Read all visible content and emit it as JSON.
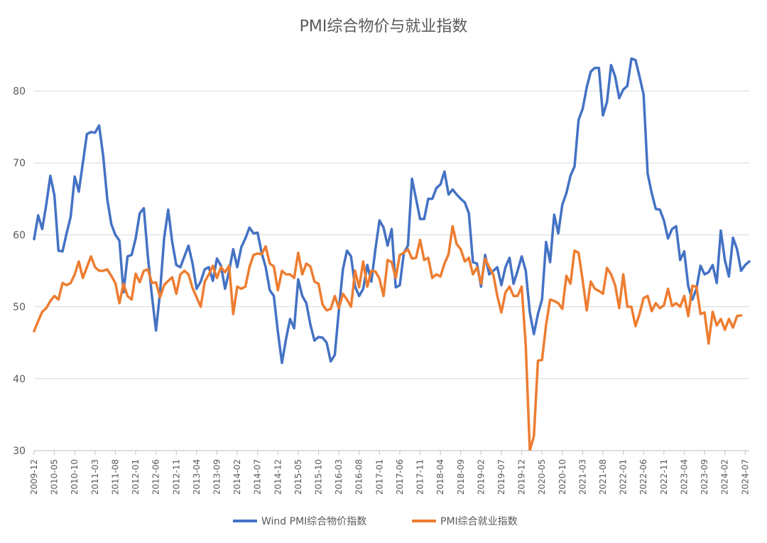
{
  "chart_data": {
    "type": "line",
    "title": "PMI综合物价与就业指数",
    "ylim": [
      30,
      85
    ],
    "yticks": [
      30,
      40,
      50,
      60,
      70,
      80
    ],
    "grid": true,
    "legend_position": "bottom",
    "x_tick_labels": [
      "2009-12",
      "2010-05",
      "2010-10",
      "2011-03",
      "2011-08",
      "2012-01",
      "2012-06",
      "2012-11",
      "2013-04",
      "2013-09",
      "2014-02",
      "2014-07",
      "2014-12",
      "2015-05",
      "2015-10",
      "2016-03",
      "2016-08",
      "2017-01",
      "2017-06",
      "2017-11",
      "2018-04",
      "2018-09",
      "2019-02",
      "2019-07",
      "2019-12",
      "2020-05",
      "2020-10",
      "2021-03",
      "2021-08",
      "2022-01",
      "2022-06",
      "2022-11",
      "2023-04",
      "2023-09",
      "2024-02",
      "2024-07"
    ],
    "x_start": "2009-12",
    "series": [
      {
        "name": "Wind PMI综合物价指数",
        "color": "#4472c4",
        "values": [
          59.4,
          62.7,
          60.8,
          64.2,
          68.2,
          65.5,
          57.8,
          57.7,
          60.2,
          62.5,
          68.1,
          66.0,
          70.0,
          74.0,
          74.3,
          74.2,
          75.2,
          71.0,
          65.0,
          61.5,
          60.0,
          59.2,
          52.0,
          57.0,
          57.2,
          59.5,
          63.0,
          63.7,
          57.0,
          51.5,
          46.7,
          52.0,
          59.5,
          63.5,
          59.0,
          55.8,
          55.5,
          57.0,
          58.5,
          56.0,
          52.5,
          53.5,
          55.2,
          55.5,
          53.6,
          56.7,
          55.7,
          52.5,
          55.0,
          58.0,
          55.5,
          58.3,
          59.5,
          61.0,
          60.2,
          60.3,
          57.5,
          55.5,
          52.3,
          51.5,
          46.5,
          42.2,
          45.5,
          48.3,
          47.0,
          53.8,
          51.5,
          50.5,
          47.5,
          45.3,
          45.8,
          45.7,
          45.0,
          42.4,
          43.3,
          49.5,
          55.2,
          57.8,
          57.0,
          52.8,
          51.5,
          52.5,
          55.8,
          53.5,
          58.0,
          62.0,
          61.0,
          58.5,
          60.8,
          52.7,
          53.0,
          57.5,
          58.5,
          67.8,
          65.0,
          62.2,
          62.2,
          65.0,
          65.0,
          66.5,
          67.0,
          68.8,
          65.6,
          66.3,
          65.6,
          65.0,
          64.5,
          63.0,
          56.2,
          56.0,
          52.8,
          57.2,
          54.5,
          55.0,
          55.5,
          53.0,
          55.5,
          56.8,
          53.2,
          55.0,
          57.0,
          55.0,
          49.2,
          46.2,
          49.0,
          51.0,
          59.0,
          56.2,
          62.8,
          60.2,
          64.2,
          65.8,
          68.2,
          69.5,
          76.0,
          77.5,
          80.5,
          82.7,
          83.2,
          83.2,
          76.6,
          78.5,
          83.6,
          82.0,
          79.0,
          80.2,
          80.7,
          84.5,
          84.3,
          82.0,
          79.5,
          68.5,
          65.8,
          63.6,
          63.5,
          62.0,
          59.5,
          60.8,
          61.2,
          56.5,
          57.7,
          52.8,
          51.0,
          52.5,
          55.7,
          54.5,
          54.8,
          55.8,
          53.3,
          60.6,
          56.5,
          54.2,
          59.6,
          58.0,
          55.0,
          55.8,
          56.3
        ]
      },
      {
        "name": "PMI综合就业指数",
        "color": "#ed7d31",
        "values": [
          46.6,
          48.0,
          49.3,
          49.8,
          50.8,
          51.5,
          51.0,
          53.3,
          53.0,
          53.3,
          54.5,
          56.3,
          54.0,
          55.5,
          57.0,
          55.5,
          55.0,
          55.0,
          55.2,
          54.3,
          53.3,
          50.5,
          53.2,
          51.5,
          51.0,
          54.6,
          53.4,
          55.0,
          55.2,
          53.3,
          53.4,
          51.3,
          53.0,
          53.6,
          54.1,
          51.8,
          54.5,
          55.0,
          54.5,
          52.6,
          51.3,
          50.0,
          53.5,
          54.5,
          55.7,
          54.0,
          55.5,
          54.8,
          55.7,
          49.0,
          52.8,
          52.5,
          52.8,
          55.5,
          57.2,
          57.4,
          57.3,
          58.4,
          56.0,
          55.6,
          52.3,
          55.0,
          54.5,
          54.5,
          54.0,
          57.5,
          54.5,
          56.0,
          55.6,
          53.5,
          53.2,
          50.3,
          49.5,
          49.7,
          51.5,
          49.8,
          51.8,
          51.0,
          50.0,
          55.0,
          52.7,
          56.3,
          52.8,
          55.0,
          54.9,
          53.9,
          51.5,
          56.5,
          56.2,
          54.0,
          57.2,
          57.5,
          58.0,
          56.7,
          56.8,
          59.3,
          56.5,
          56.8,
          54.0,
          54.5,
          54.2,
          56.0,
          57.3,
          61.2,
          58.7,
          58.0,
          56.3,
          56.8,
          54.5,
          55.5,
          53.2,
          56.7,
          55.5,
          54.5,
          51.5,
          49.2,
          52.0,
          52.8,
          51.5,
          51.5,
          52.8,
          44.6,
          30.0,
          32.0,
          42.5,
          42.6,
          47.5,
          51.0,
          50.8,
          50.5,
          49.7,
          54.3,
          53.2,
          57.8,
          57.5,
          53.7,
          49.5,
          53.5,
          52.5,
          52.2,
          51.8,
          55.4,
          54.5,
          53.0,
          49.8,
          54.5,
          50.0,
          50.0,
          47.3,
          49.0,
          51.2,
          51.5,
          49.4,
          50.5,
          49.8,
          50.2,
          52.5,
          50.1,
          50.5,
          50.0,
          51.5,
          48.7,
          52.9,
          52.8,
          49.0,
          49.2,
          44.9,
          49.3,
          47.4,
          48.3,
          46.8,
          48.3,
          47.1,
          48.7,
          48.8
        ]
      }
    ]
  }
}
